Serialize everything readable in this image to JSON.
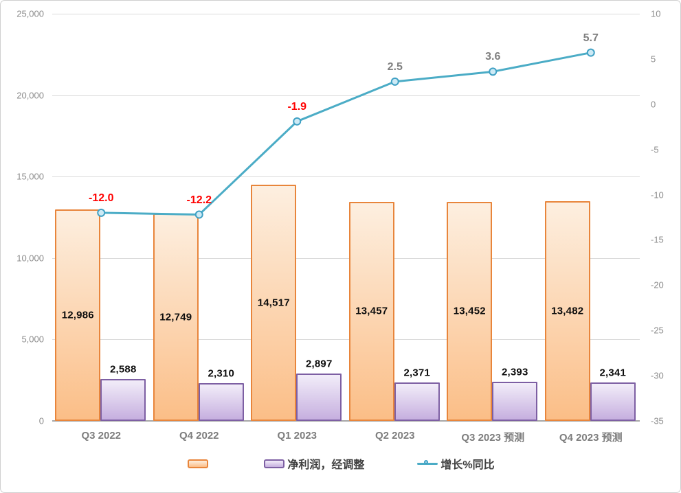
{
  "chart_data": {
    "type": "combo-bar-line",
    "categories": [
      "Q3 2022",
      "Q4 2022",
      "Q1 2023",
      "Q2 2023",
      "Q3 2023 预测",
      "Q4 2023 预测"
    ],
    "series": [
      {
        "name": "",
        "type": "bar",
        "axis": "left",
        "values": [
          12986,
          12749,
          14517,
          13457,
          13452,
          13482
        ],
        "labels": [
          "12,986",
          "12,749",
          "14,517",
          "13,457",
          "13,452",
          "13,482"
        ]
      },
      {
        "name": "净利润，经调整",
        "type": "bar",
        "axis": "left",
        "values": [
          2588,
          2310,
          2897,
          2371,
          2393,
          2341
        ],
        "labels": [
          "2,588",
          "2,310",
          "2,897",
          "2,371",
          "2,393",
          "2,341"
        ]
      },
      {
        "name": "增长%同比",
        "type": "line",
        "axis": "right",
        "values": [
          -12.0,
          -12.2,
          -1.9,
          2.5,
          3.6,
          5.7
        ],
        "labels": [
          "-12.0",
          "-12.2",
          "-1.9",
          "2.5",
          "3.6",
          "5.7"
        ]
      }
    ],
    "left_axis": {
      "min": 0,
      "max": 25000,
      "tick_labels": [
        "25,000",
        "20,000",
        "15,000",
        "10,000",
        "5,000",
        "0"
      ]
    },
    "right_axis": {
      "min": -35,
      "max": 10,
      "tick_labels": [
        "10",
        "5",
        "0",
        "-5",
        "-10",
        "-15",
        "-20",
        "-25",
        "-30",
        "-35"
      ]
    },
    "grid": true,
    "legend_position": "bottom"
  },
  "colors": {
    "background": "#ffffff",
    "chart_border": "#cfcfcf",
    "gridline": "#dadada",
    "axis_line": "#a6a6a6",
    "tick_text": "#8c8c8c",
    "xlabel_text": "#7d7d7d",
    "bar_value_text": "#0d0d0d",
    "revenue_bar": {
      "fill_top": "#fdefe0",
      "fill_bottom": "#fbbe87",
      "border": "#e8853b"
    },
    "profit_bar": {
      "fill_top": "#f2edf9",
      "fill_bottom": "#c6afdf",
      "border": "#7d5fa3"
    },
    "growth_line": {
      "stroke": "#4bacc6",
      "marker_fill": "#cdeaf5",
      "marker_ring": "#3fa0c4"
    },
    "label_negative": "#ff0000",
    "label_positive": "#7f7f7f"
  }
}
